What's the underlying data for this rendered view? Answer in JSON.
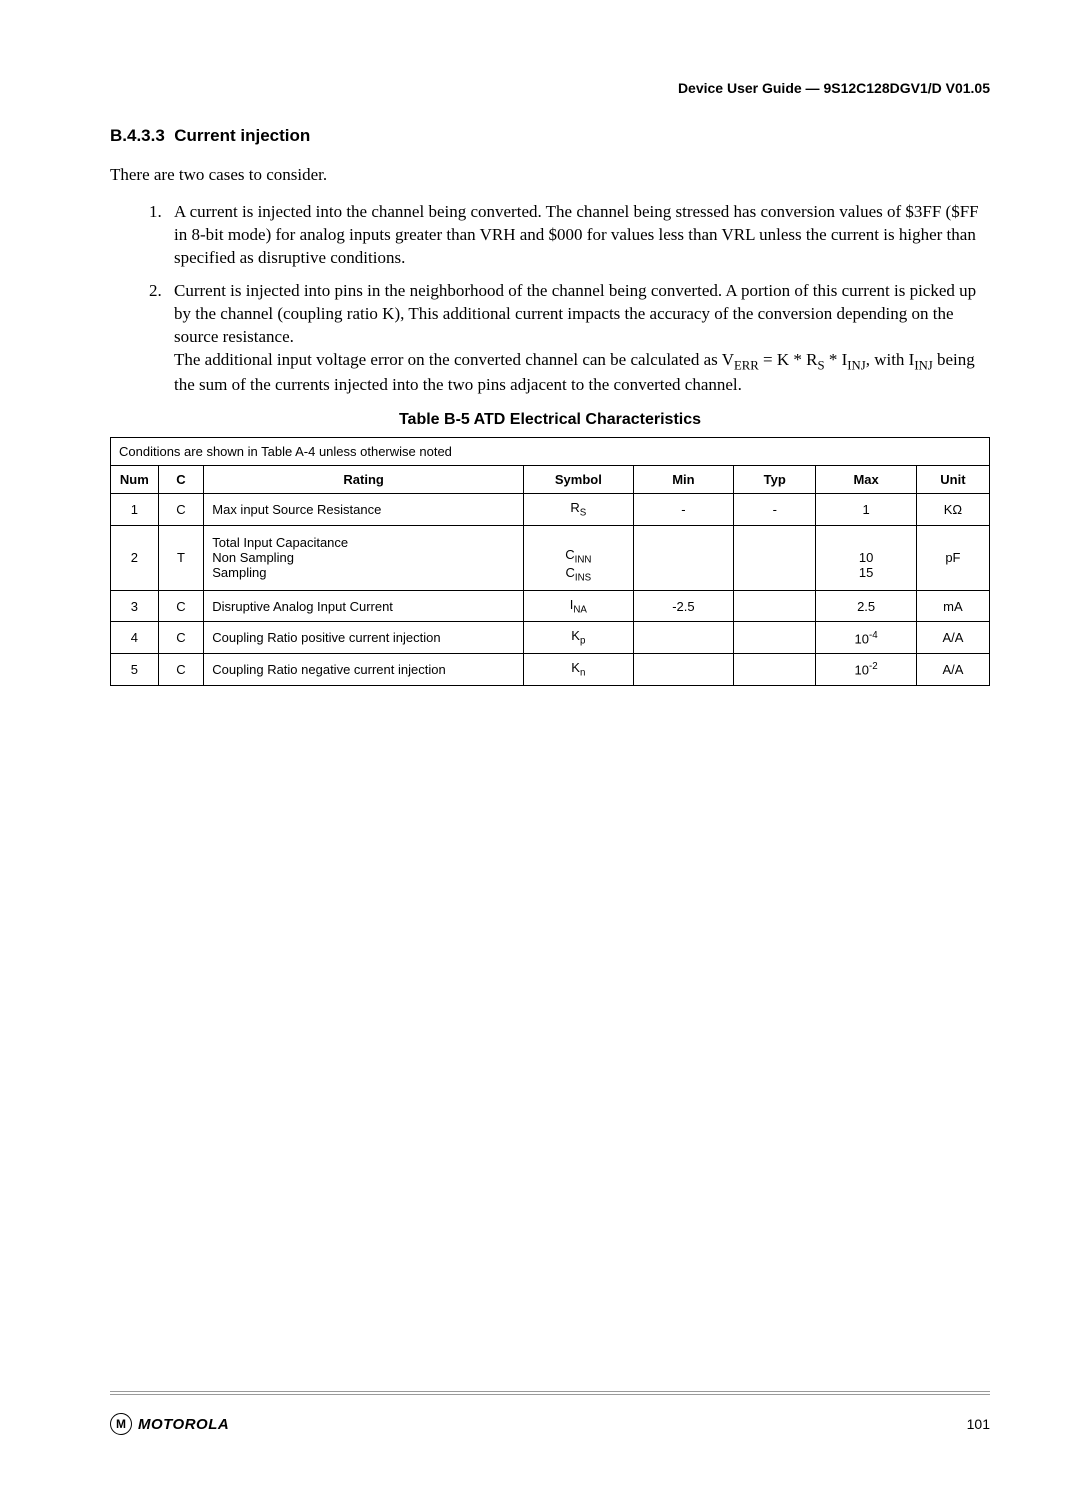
{
  "header": {
    "doc_ref": "Device User Guide — 9S12C128DGV1/D V01.05"
  },
  "section": {
    "number": "B.4.3.3",
    "title": "Current injection"
  },
  "intro": "There are two cases to consider.",
  "list": {
    "item1": "A current is injected into the channel being converted. The channel being stressed has conversion values of $3FF ($FF in 8-bit mode) for analog inputs greater than VRH and $000 for values less than VRL unless the current is higher than specified as disruptive conditions.",
    "item2_p1": "Current is injected into pins in the neighborhood of the channel being converted. A portion of this current is picked up by the channel (coupling ratio K), This additional current impacts the accuracy of the conversion depending on the source resistance.",
    "item2_p2_a": "The additional input voltage error on the converted channel can be calculated as V",
    "item2_p2_b": " = K * R",
    "item2_p2_c": " * I",
    "item2_p2_d": ", with I",
    "item2_p2_e": " being the sum of the currents injected into the two pins adjacent to the converted channel.",
    "sub_err": "ERR",
    "sub_s": "S",
    "sub_inj": "INJ"
  },
  "table": {
    "title": "Table B-5  ATD Electrical Characteristics",
    "conditions": "Conditions are shown in Table A-4 unless otherwise noted",
    "headers": {
      "num": "Num",
      "c": "C",
      "rating": "Rating",
      "symbol": "Symbol",
      "min": "Min",
      "typ": "Typ",
      "max": "Max",
      "unit": "Unit"
    },
    "rows": [
      {
        "num": "1",
        "c": "C",
        "rating": "Max input Source Resistance",
        "symbol_base": "R",
        "symbol_sub": "S",
        "min": "-",
        "typ": "-",
        "max": "1",
        "unit": "KΩ"
      },
      {
        "num": "2",
        "c": "T",
        "rating_l1": "Total Input Capacitance",
        "rating_l2": "Non Sampling",
        "rating_l3": "Sampling",
        "symbol_base1": "C",
        "symbol_sub1": "INN",
        "symbol_base2": "C",
        "symbol_sub2": "INS",
        "min": "",
        "typ": "",
        "max_l1": "10",
        "max_l2": "15",
        "unit": "pF"
      },
      {
        "num": "3",
        "c": "C",
        "rating": "Disruptive Analog Input Current",
        "symbol_base": "I",
        "symbol_sub": "NA",
        "min": "-2.5",
        "typ": "",
        "max": "2.5",
        "unit": "mA"
      },
      {
        "num": "4",
        "c": "C",
        "rating": "Coupling Ratio positive current injection",
        "symbol_base": "K",
        "symbol_sub": "p",
        "min": "",
        "typ": "",
        "max_base": "10",
        "max_sup": "-4",
        "unit": "A/A"
      },
      {
        "num": "5",
        "c": "C",
        "rating": "Coupling Ratio negative current injection",
        "symbol_base": "K",
        "symbol_sub": "n",
        "min": "",
        "typ": "",
        "max_base": "10",
        "max_sup": "-2",
        "unit": "A/A"
      }
    ]
  },
  "footer": {
    "logo_letter": "M",
    "logo_text": "MOTOROLA",
    "page_num": "101"
  },
  "colors": {
    "text": "#000000",
    "background": "#ffffff",
    "rule": "#9a9a9a"
  }
}
